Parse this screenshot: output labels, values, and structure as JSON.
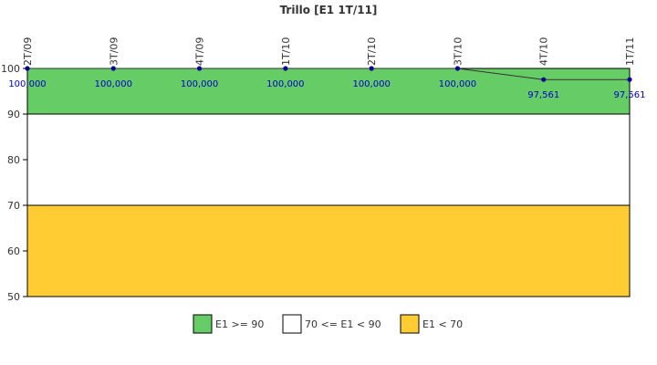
{
  "chart_data": {
    "type": "line",
    "title": "Trillo [E1 1T/11]",
    "categories": [
      "2T/09",
      "3T/09",
      "4T/09",
      "1T/10",
      "2T/10",
      "3T/10",
      "4T/10",
      "1T/11"
    ],
    "values": [
      100,
      100,
      100,
      100,
      100,
      100,
      97.561,
      97.561
    ],
    "value_labels": [
      "100,000",
      "100,000",
      "100,000",
      "100,000",
      "100,000",
      "100,000",
      "97,561",
      "97,561"
    ],
    "ylim": [
      50,
      100
    ],
    "yticks": [
      "50",
      "60",
      "70",
      "80",
      "90",
      "100"
    ],
    "bands": [
      {
        "name": "E1 >= 90",
        "from": 90,
        "to": 100,
        "color": "#66cc66"
      },
      {
        "name": "70 <= E1 < 90",
        "from": 70,
        "to": 90,
        "color": "#ffffff"
      },
      {
        "name": "E1 < 70",
        "from": 50,
        "to": 70,
        "color": "#ffcc33"
      }
    ],
    "series_color": "#000099",
    "line_color": "#333333",
    "legend_position": "bottom"
  }
}
